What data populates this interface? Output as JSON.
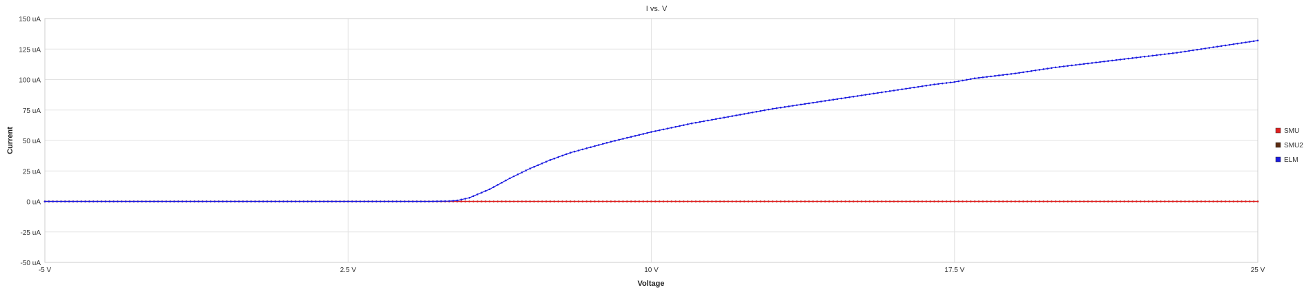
{
  "chart_data": {
    "type": "line",
    "title": "I vs. V",
    "xlabel": "Voltage",
    "ylabel": "Current",
    "xlim": [
      -5,
      25
    ],
    "ylim": [
      -50,
      150
    ],
    "x_ticks": [
      -5,
      2.5,
      10,
      17.5,
      25
    ],
    "x_tick_labels": [
      "-5 V",
      "2.5 V",
      "10 V",
      "17.5 V",
      "25 V"
    ],
    "y_ticks": [
      150,
      125,
      100,
      75,
      50,
      25,
      0,
      -25,
      -50
    ],
    "y_tick_labels": [
      "150 uA",
      "125 uA",
      "100 uA",
      "75 uA",
      "50 uA",
      "25 uA",
      "0 uA",
      "-25 uA",
      "-50 uA"
    ],
    "grid": true,
    "legend_position": "right",
    "series": [
      {
        "name": "SMU",
        "color": "#e02020",
        "x": [
          -5,
          25
        ],
        "values": [
          0,
          0
        ]
      },
      {
        "name": "SMU2",
        "color": "#5a2a10",
        "x": [
          -5,
          25
        ],
        "values": [
          0,
          0
        ]
      },
      {
        "name": "ELM",
        "color": "#1a1ae0",
        "x": [
          -5,
          0,
          2.5,
          4.5,
          5,
          5.2,
          5.5,
          6,
          6.5,
          7,
          7.5,
          8,
          9,
          10,
          11,
          12,
          13,
          14,
          15,
          16,
          17,
          17.5,
          18,
          19,
          20,
          21,
          22,
          23,
          24,
          25
        ],
        "values": [
          0,
          0,
          0,
          0,
          0.3,
          0.8,
          3,
          10,
          19,
          27,
          34,
          40,
          49,
          57,
          64,
          70,
          76,
          81,
          86,
          91,
          96,
          98,
          101,
          105,
          110,
          114,
          118,
          122,
          127,
          132
        ]
      }
    ]
  }
}
